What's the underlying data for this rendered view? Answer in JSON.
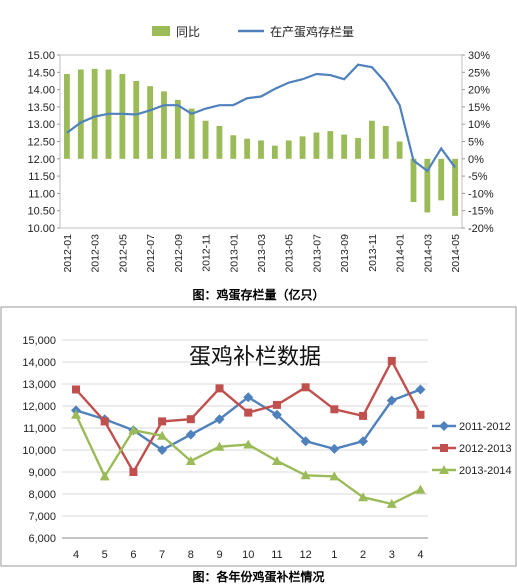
{
  "chart_data": [
    {
      "type": "bar+line",
      "title": "",
      "caption": "图：鸡蛋存栏量（亿只）",
      "legend": [
        "同比",
        "在产蛋鸡存栏量"
      ],
      "legend_position": "top",
      "categories": [
        "2012-01",
        "2012-02",
        "2012-03",
        "2012-04",
        "2012-05",
        "2012-06",
        "2012-07",
        "2012-08",
        "2012-09",
        "2012-10",
        "2012-11",
        "2012-12",
        "2013-01",
        "2013-02",
        "2013-03",
        "2013-04",
        "2013-05",
        "2013-06",
        "2013-07",
        "2013-08",
        "2013-09",
        "2013-10",
        "2013-11",
        "2013-12",
        "2014-01",
        "2014-02",
        "2014-03",
        "2014-04",
        "2014-05"
      ],
      "x_tick_labels": [
        "2012-01",
        "2012-03",
        "2012-05",
        "2012-07",
        "2012-09",
        "2012-11",
        "2013-01",
        "2013-03",
        "2013-05",
        "2013-07",
        "2013-09",
        "2013-11",
        "2014-01",
        "2014-03",
        "2014-05"
      ],
      "series": [
        {
          "name": "同比",
          "type": "bar",
          "axis": "right",
          "color": "#9BBB59",
          "values": [
            24.5,
            25.8,
            26,
            25.8,
            24.5,
            22.5,
            21,
            19.5,
            17,
            14.5,
            11,
            9.5,
            6.8,
            5.8,
            5.3,
            3.8,
            5.3,
            6.5,
            7.6,
            8.0,
            7.0,
            6.0,
            11,
            9.5,
            5.0,
            -12.5,
            -15.5,
            -12,
            -16.5
          ]
        },
        {
          "name": "在产蛋鸡存栏量",
          "type": "line",
          "axis": "left",
          "color": "#4F81BD",
          "values": [
            12.75,
            13.05,
            13.22,
            13.3,
            13.3,
            13.28,
            13.4,
            13.55,
            13.55,
            13.3,
            13.45,
            13.55,
            13.55,
            13.75,
            13.8,
            14.02,
            14.2,
            14.3,
            14.45,
            14.42,
            14.3,
            14.72,
            14.65,
            14.2,
            13.55,
            11.95,
            11.65,
            12.3,
            11.75
          ]
        }
      ],
      "y_left": {
        "min": 10.0,
        "max": 15.0,
        "ticks": [
          "10.00",
          "10.50",
          "11.00",
          "11.50",
          "12.00",
          "12.50",
          "13.00",
          "13.50",
          "14.00",
          "14.50",
          "15.00"
        ]
      },
      "y_right": {
        "min": -20,
        "max": 30,
        "ticks": [
          "-20%",
          "-15%",
          "-10%",
          "-5%",
          "0%",
          "5%",
          "10%",
          "15%",
          "20%",
          "25%",
          "30%"
        ]
      }
    },
    {
      "type": "line",
      "title": "蛋鸡补栏数据",
      "caption": "图：各年份鸡蛋补栏情况",
      "categories": [
        "4",
        "5",
        "6",
        "7",
        "8",
        "9",
        "10",
        "11",
        "12",
        "1",
        "2",
        "3",
        "4"
      ],
      "ylim": [
        6000,
        15000
      ],
      "y_ticks": [
        "6,000",
        "7,000",
        "8,000",
        "9,000",
        "10,000",
        "11,000",
        "12,000",
        "13,000",
        "14,000",
        "15,000"
      ],
      "grid": true,
      "legend_position": "right",
      "series": [
        {
          "name": "2011-2012",
          "color": "#4F81BD",
          "marker": "diamond",
          "values": [
            11800,
            11400,
            10900,
            10000,
            10700,
            11400,
            12400,
            11600,
            10400,
            10050,
            10400,
            12250,
            12750
          ]
        },
        {
          "name": "2012-2013",
          "color": "#C0504D",
          "marker": "square",
          "values": [
            12750,
            11300,
            9000,
            11300,
            11400,
            12800,
            11700,
            12050,
            12850,
            11850,
            11550,
            14050,
            11600
          ]
        },
        {
          "name": "2013-2014",
          "color": "#9BBB59",
          "marker": "triangle",
          "values": [
            11600,
            8800,
            10900,
            10650,
            9500,
            10150,
            10250,
            9500,
            8850,
            8800,
            7850,
            7550,
            8200
          ]
        }
      ]
    }
  ]
}
